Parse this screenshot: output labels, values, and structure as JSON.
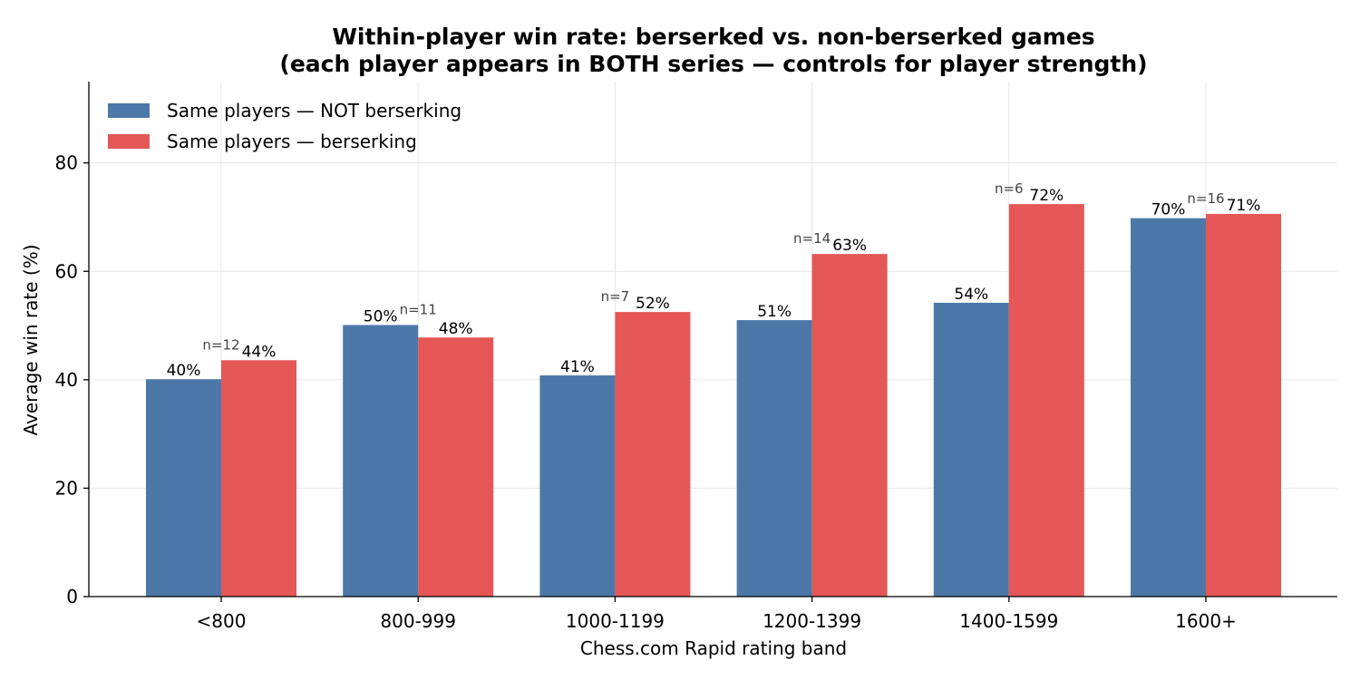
{
  "chart_data": {
    "type": "bar",
    "title": "Within-player win rate: berserked vs. non-berserked games",
    "subtitle": "(each player appears in BOTH series — controls for player strength)",
    "xlabel": "Chess.com Rapid rating band",
    "ylabel": "Average win rate (%)",
    "categories": [
      "<800",
      "800-999",
      "1000-1199",
      "1200-1399",
      "1400-1599",
      "1600+"
    ],
    "series": [
      {
        "name": "Same players — NOT berserking",
        "color": "#4c78a8",
        "values": [
          40.1,
          50.1,
          40.8,
          51.0,
          54.2,
          69.8
        ],
        "labels": [
          "40%",
          "50%",
          "41%",
          "51%",
          "54%",
          "70%"
        ]
      },
      {
        "name": "Same players — berserking",
        "color": "#e45756",
        "values": [
          43.6,
          47.8,
          52.5,
          63.2,
          72.4,
          70.6
        ],
        "labels": [
          "44%",
          "48%",
          "52%",
          "63%",
          "72%",
          "71%"
        ]
      }
    ],
    "n_labels": [
      "n=12",
      "n=11",
      "n=7",
      "n=14",
      "n=6",
      "n=16"
    ],
    "yticks": [
      "0",
      "20",
      "40",
      "60",
      "80"
    ],
    "ylim": [
      0,
      95
    ],
    "grid": true,
    "legend_position": "upper-left"
  }
}
